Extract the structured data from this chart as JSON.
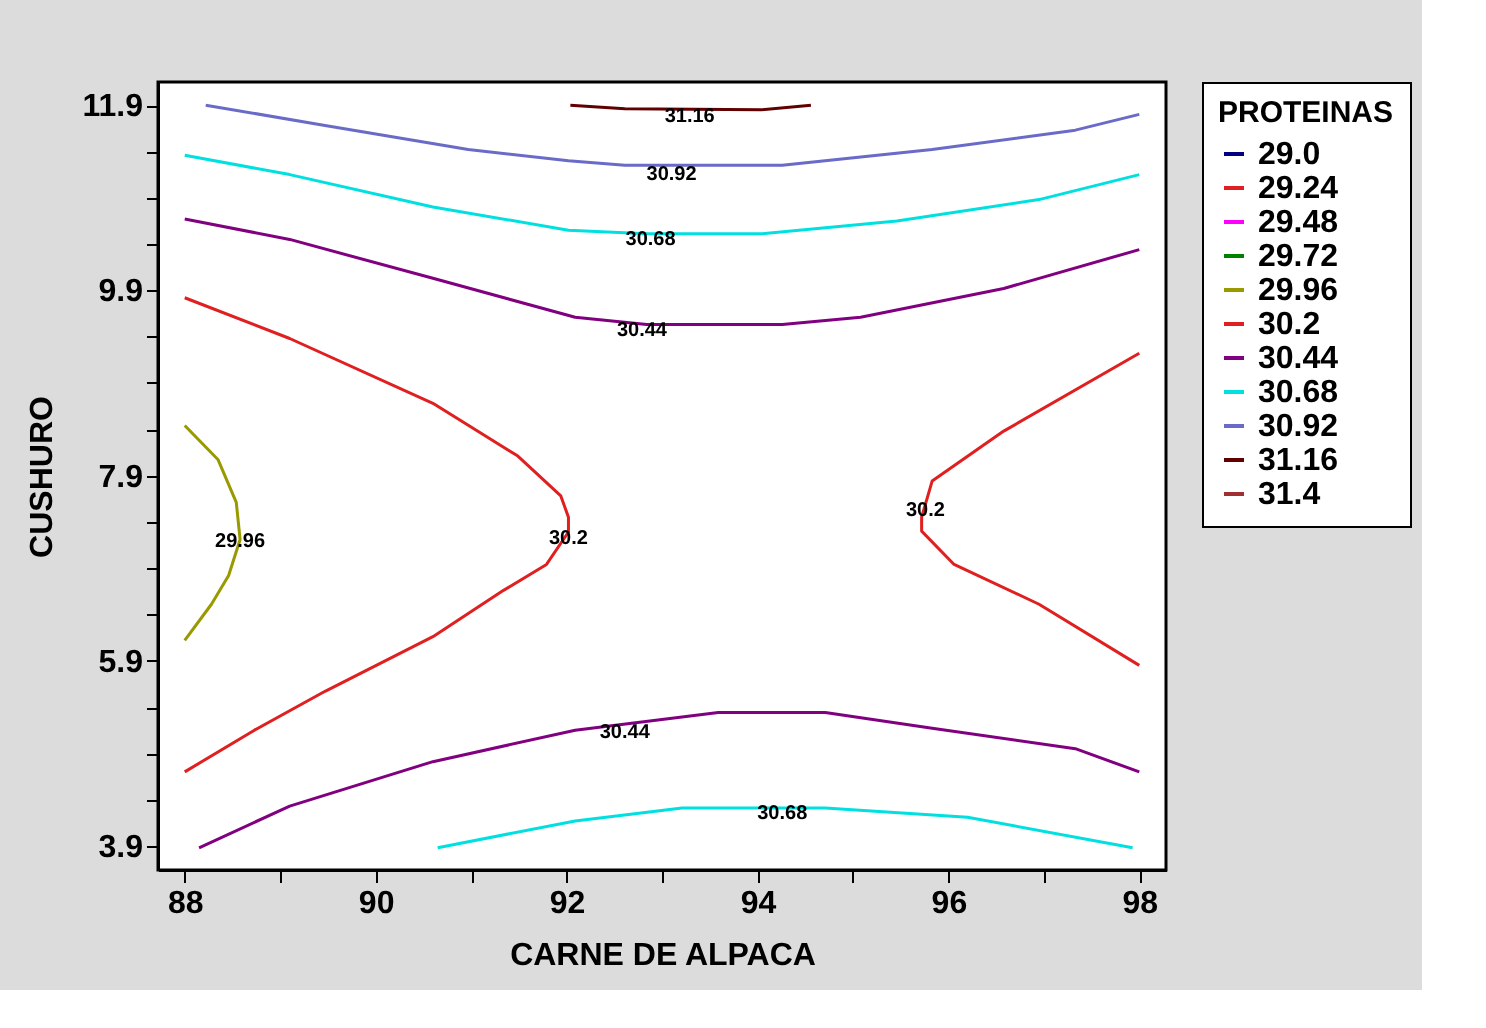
{
  "chart_data": {
    "type": "line",
    "xlabel": "CARNE DE ALPACA",
    "ylabel": "CUSHURO",
    "legend_title": "PROTEINAS",
    "legend": "right",
    "xlim": [
      87.72,
      98.28
    ],
    "ylim": [
      3.64,
      12.15
    ],
    "xticks": [
      88,
      {
        "value": 89,
        "label": null
      },
      90,
      {
        "value": 91,
        "label": null
      },
      92,
      {
        "value": 93,
        "label": null
      },
      94,
      {
        "value": 95,
        "label": null
      },
      96,
      {
        "value": 97,
        "label": null
      },
      98
    ],
    "yticks": [
      3.9,
      {
        "value": 4.4,
        "label": null
      },
      {
        "value": 4.9,
        "label": null
      },
      {
        "value": 5.4,
        "label": null
      },
      5.9,
      {
        "value": 6.4,
        "label": null
      },
      {
        "value": 6.9,
        "label": null
      },
      {
        "value": 7.4,
        "label": null
      },
      7.9,
      {
        "value": 8.4,
        "label": null
      },
      {
        "value": 8.9,
        "label": null
      },
      {
        "value": 9.4,
        "label": null
      },
      9.9,
      {
        "value": 10.4,
        "label": null
      },
      {
        "value": 10.9,
        "label": null
      },
      {
        "value": 11.4,
        "label": null
      },
      11.9
    ],
    "series": [
      {
        "name": "29.0",
        "color": "#000080"
      },
      {
        "name": "29.24",
        "color": "#e02020"
      },
      {
        "name": "29.48",
        "color": "#ff00ff"
      },
      {
        "name": "29.72",
        "color": "#008000"
      },
      {
        "name": "29.96",
        "color": "#999900",
        "x": [
          88,
          88.35,
          88.54,
          88.58,
          88.46,
          88.28,
          88
        ],
        "values": [
          8.44,
          8.07,
          7.61,
          7.21,
          6.82,
          6.51,
          6.12
        ]
      },
      {
        "name": "30.2",
        "color": "#e02020",
        "x": [
          88,
          89.1,
          90.6,
          91.49,
          91.94,
          92.02,
          92.02,
          91.79,
          91.34,
          90.6,
          89.47,
          88.73,
          88,
          null,
          98,
          96.58,
          95.83,
          95.72,
          95.72,
          96.06,
          96.95,
          98
        ],
        "values": [
          9.82,
          9.38,
          8.68,
          8.11,
          7.68,
          7.45,
          7.29,
          6.94,
          6.66,
          6.16,
          5.57,
          5.15,
          4.7,
          null,
          9.22,
          8.38,
          7.84,
          7.45,
          7.3,
          6.94,
          6.51,
          5.85
        ]
      },
      {
        "name": "30.44",
        "color": "#800080",
        "x": [
          88,
          89.1,
          90.6,
          92.09,
          92.84,
          94.26,
          95.08,
          96.58,
          98,
          null,
          88.15,
          89.1,
          90.6,
          92.09,
          93.59,
          94.71,
          95.83,
          97.33,
          98
        ],
        "values": [
          10.67,
          10.45,
          10.03,
          9.61,
          9.53,
          9.53,
          9.61,
          9.92,
          10.34,
          null,
          3.88,
          4.33,
          4.81,
          5.15,
          5.34,
          5.34,
          5.17,
          4.95,
          4.7
        ]
      },
      {
        "name": "30.68",
        "color": "#00e0e0",
        "x": [
          88,
          89.1,
          90.6,
          92.02,
          92.84,
          94.04,
          95.46,
          96.95,
          98,
          null,
          90.65,
          92.09,
          93.21,
          94.71,
          96.2,
          97.93
        ],
        "values": [
          11.36,
          11.15,
          10.8,
          10.55,
          10.51,
          10.51,
          10.65,
          10.88,
          11.15,
          null,
          3.88,
          4.17,
          4.31,
          4.31,
          4.21,
          3.88
        ]
      },
      {
        "name": "30.92",
        "color": "#6a6ac8",
        "x": [
          88.22,
          89.47,
          90.97,
          92.02,
          92.61,
          94.26,
          95.83,
          97.33,
          98
        ],
        "values": [
          11.9,
          11.68,
          11.42,
          11.3,
          11.25,
          11.25,
          11.42,
          11.63,
          11.8
        ]
      },
      {
        "name": "31.16",
        "color": "#600000",
        "x": [
          92.04,
          92.61,
          94.04,
          94.56
        ],
        "values": [
          11.9,
          11.86,
          11.85,
          11.9
        ]
      },
      {
        "name": "31.4",
        "color": "#a03030"
      }
    ],
    "annotations": [
      {
        "text": "31.16",
        "x": 93.29,
        "y": 11.78
      },
      {
        "text": "30.92",
        "x": 93.1,
        "y": 11.16
      },
      {
        "text": "30.68",
        "x": 92.88,
        "y": 10.45
      },
      {
        "text": "30.44",
        "x": 92.79,
        "y": 9.47
      },
      {
        "text": "29.96",
        "x": 88.58,
        "y": 7.19
      },
      {
        "text": "30.2",
        "x": 92.02,
        "y": 7.23
      },
      {
        "text": "30.2",
        "x": 95.76,
        "y": 7.53
      },
      {
        "text": "30.44",
        "x": 92.61,
        "y": 5.13
      },
      {
        "text": "30.68",
        "x": 94.26,
        "y": 4.26
      }
    ]
  }
}
